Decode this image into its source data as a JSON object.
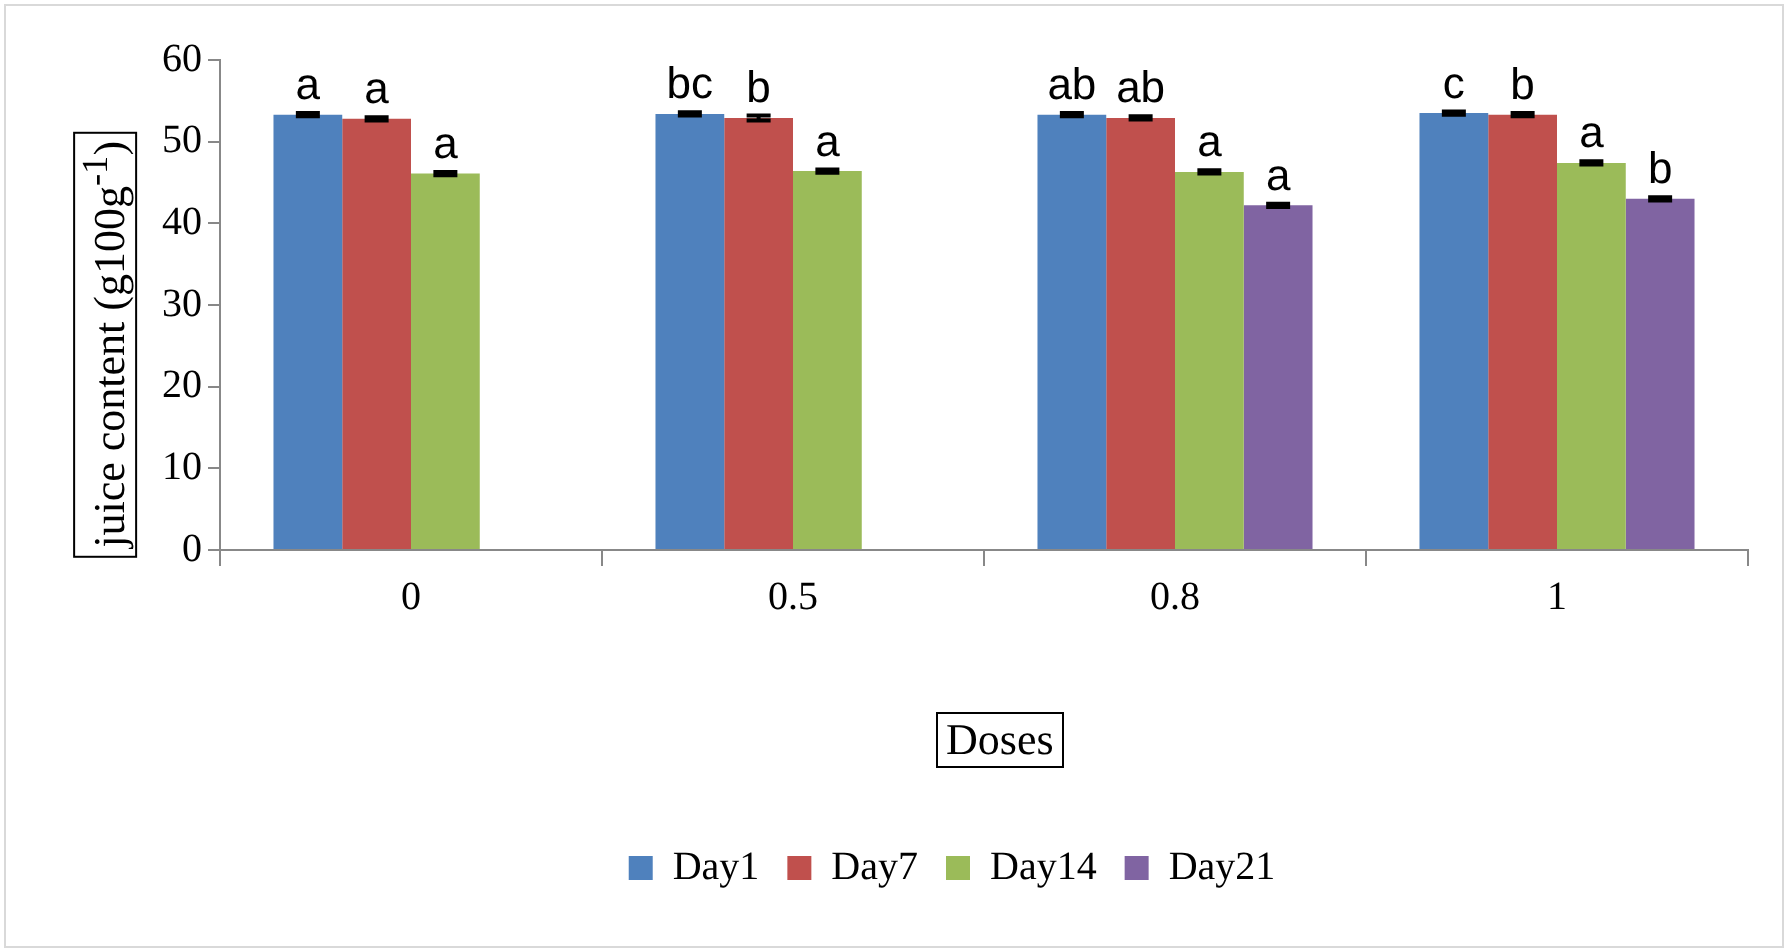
{
  "chart_data": {
    "type": "bar",
    "xlabel": "Doses",
    "ylabel": "juice content (g100g$^{-1}$)",
    "categories": [
      "0",
      "0.5",
      "0.8",
      "1"
    ],
    "series": [
      {
        "name": "Day1",
        "color": "#4f81bd",
        "values": [
          53.3,
          53.4,
          53.3,
          53.5
        ],
        "errors": [
          0.2,
          0.2,
          0.2,
          0.2
        ],
        "value_labels": [
          "a",
          "bc",
          "ab",
          "c"
        ]
      },
      {
        "name": "Day7",
        "color": "#c0504d",
        "values": [
          52.8,
          52.9,
          52.9,
          53.3
        ],
        "errors": [
          0.2,
          0.3,
          0.2,
          0.2
        ],
        "value_labels": [
          "a",
          "b",
          "ab",
          "b"
        ]
      },
      {
        "name": "Day14",
        "color": "#9bbb59",
        "values": [
          46.1,
          46.4,
          46.3,
          47.4
        ],
        "errors": [
          0.2,
          0.2,
          0.2,
          0.2
        ],
        "value_labels": [
          "a",
          "a",
          "a",
          "a"
        ]
      },
      {
        "name": "Day21",
        "color": "#8064a2",
        "values": [
          null,
          null,
          42.2,
          43.0
        ],
        "errors": [
          null,
          null,
          0.2,
          0.2
        ],
        "value_labels": [
          null,
          null,
          "a",
          "b"
        ]
      }
    ],
    "ylim": [
      0,
      60
    ],
    "yticks": [
      0,
      10,
      20,
      30,
      40,
      50,
      60
    ],
    "grid": false,
    "legend": "bottom"
  }
}
